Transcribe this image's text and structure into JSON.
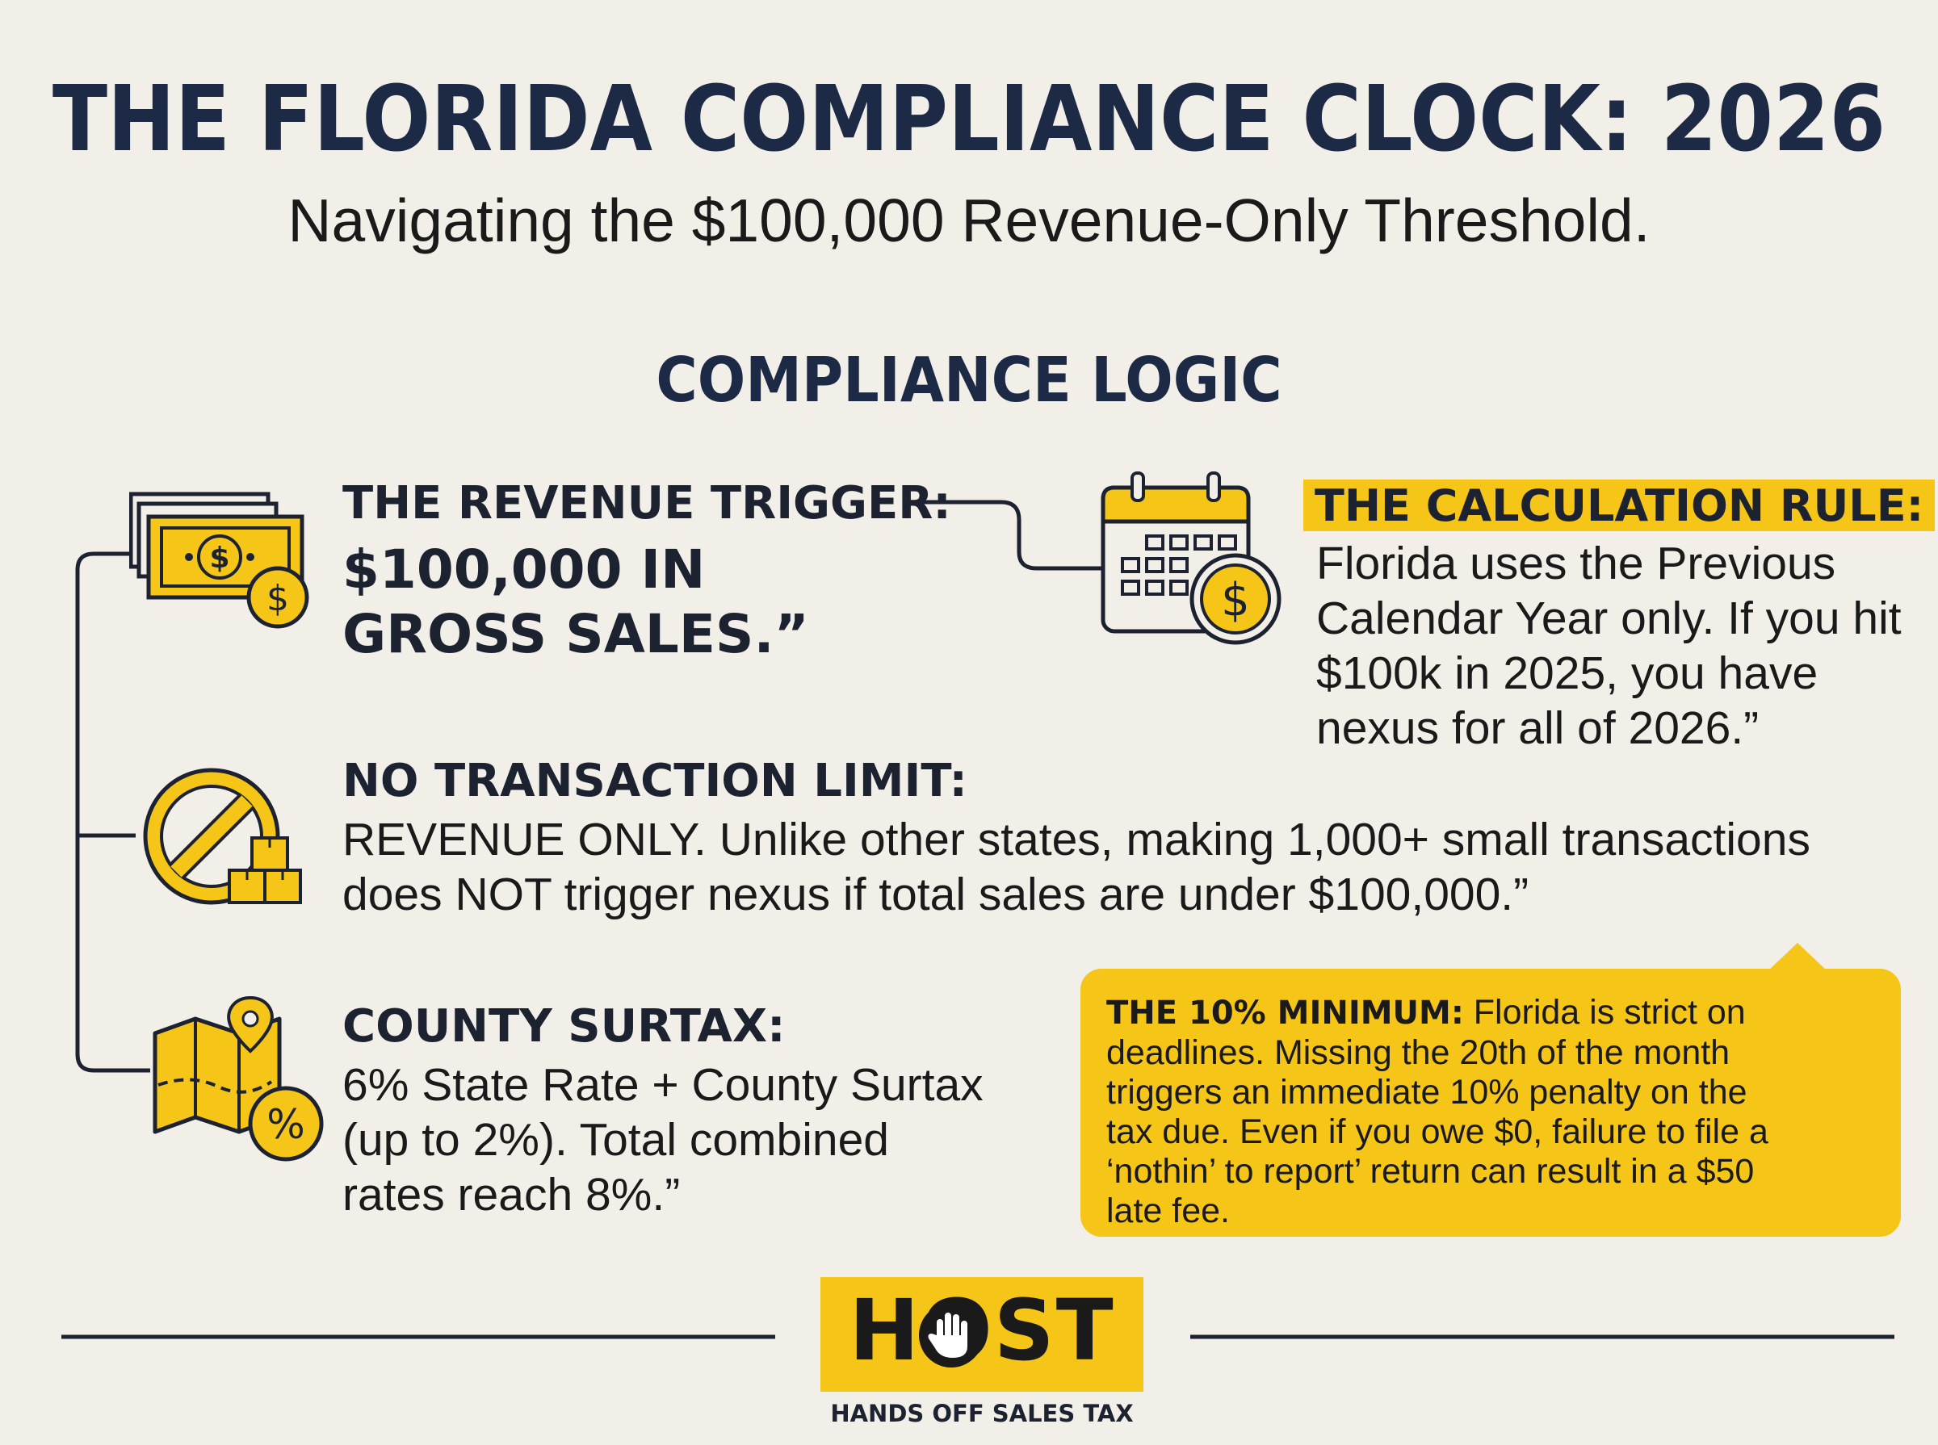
{
  "header": {
    "title": "THE FLORIDA COMPLIANCE CLOCK: 2026",
    "subtitle": "Navigating the $100,000 Revenue-Only Threshold."
  },
  "section": {
    "heading": "COMPLIANCE LOGIC"
  },
  "revenue_trigger": {
    "label": "THE REVENUE TRIGGER:",
    "value_line1": "$100,000 IN",
    "value_line2": "GROSS SALES.”",
    "icon": "money-icon"
  },
  "calculation_rule": {
    "label": "THE CALCULATION RULE:",
    "lines": [
      "Florida uses the Previous",
      "Calendar Year only. If you hit",
      "$100k in 2025, you have",
      "nexus for all of 2026.”"
    ],
    "icon": "calendar-icon"
  },
  "transaction_limit": {
    "label": "NO TRANSACTION LIMIT:",
    "lines": [
      "REVENUE ONLY. Unlike other states, making 1,000+ small transactions",
      "does NOT trigger nexus if total sales are under $100,000.”"
    ],
    "icon": "no-symbol-boxes-icon"
  },
  "county_surtax": {
    "label": "COUNTY SURTAX:",
    "lines": [
      "6% State Rate + County Surtax",
      "(up to 2%). Total combined",
      "rates reach 8%.”"
    ],
    "icon": "map-percent-icon"
  },
  "minimum_penalty": {
    "label": "THE 10% MINIMUM:",
    "line1_rest": "Florida is strict on",
    "lines": [
      "deadlines. Missing the 20th of the month",
      "triggers an immediate 10% penalty on the",
      "tax due. Even if you owe $0, failure to file a",
      "‘nothin’ to report’ return can result in a $50",
      "late fee."
    ]
  },
  "footer": {
    "logo_text": "HOST",
    "tagline": "HANDS OFF SALES TAX"
  },
  "colors": {
    "accent": "#f5c518",
    "navy": "#1c2a45",
    "background": "#f1efe8"
  }
}
